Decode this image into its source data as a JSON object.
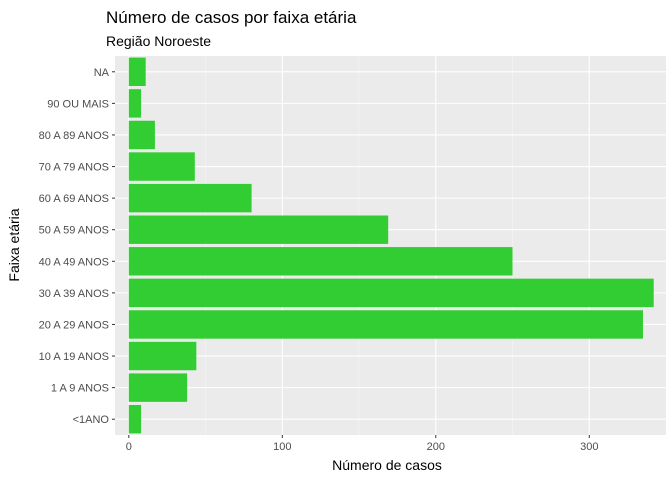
{
  "chart_data": {
    "type": "bar",
    "orientation": "horizontal",
    "title": "Número de casos por faixa etária",
    "subtitle": "Região Noroeste",
    "xlabel": "Número de casos",
    "ylabel": "Faixa etária",
    "categories": [
      "<1ANO",
      "1 A 9 ANOS",
      "10 A 19 ANOS",
      "20 A 29 ANOS",
      "30 A 39 ANOS",
      "40 A 49 ANOS",
      "50 A 59 ANOS",
      "60 A 69 ANOS",
      "70 A 79 ANOS",
      "80 A 89 ANOS",
      "90 OU MAIS",
      "NA"
    ],
    "values": [
      8,
      38,
      44,
      335,
      342,
      250,
      169,
      80,
      43,
      17,
      8,
      11
    ],
    "xlim": [
      -9,
      350
    ],
    "x_ticks": [
      0,
      100,
      200,
      300
    ],
    "x_tick_labels": [
      "0",
      "100",
      "200",
      "300"
    ],
    "grid": true,
    "colors": {
      "bar": "#32cd32",
      "panel": "#ebebeb",
      "grid_major": "#ffffff",
      "grid_minor": "#f5f5f5"
    }
  }
}
